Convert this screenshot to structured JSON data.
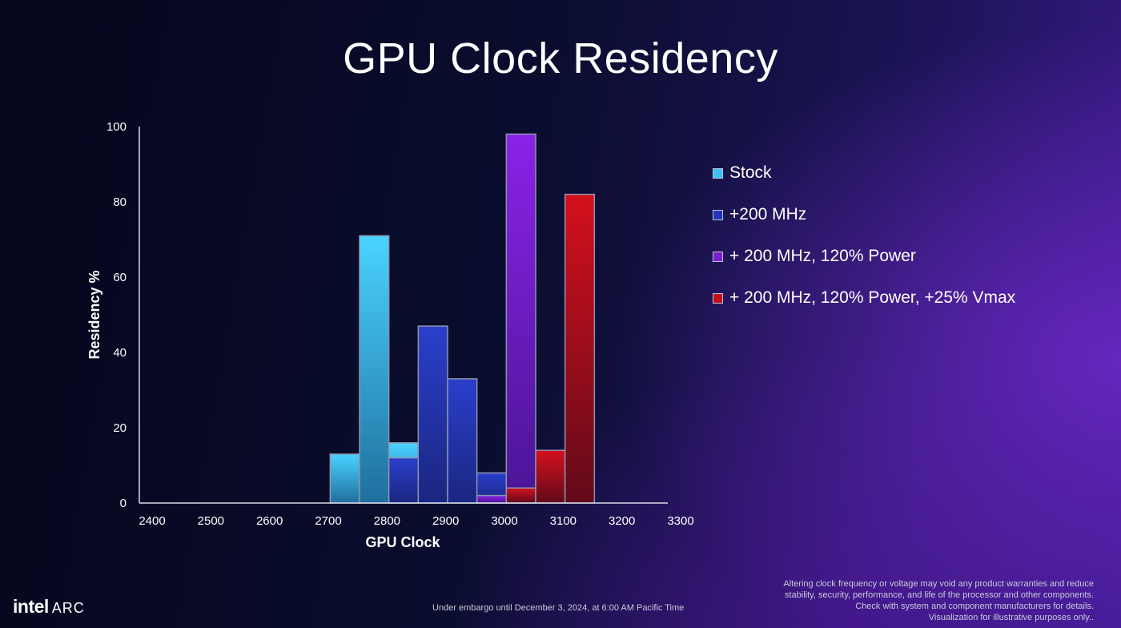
{
  "title": "GPU Clock Residency",
  "colors": {
    "Stock": "#3cc3f2",
    "+200 MHz": "#2235b8",
    "+ 200 MHz, 120% Power": "#7a1fd0",
    "+ 200 MHz, 120% Power, +25% Vmax": "#c20f1a"
  },
  "chart_data": {
    "type": "bar",
    "xlabel": "GPU Clock",
    "ylabel": "Residency  %",
    "xlim": [
      2400,
      3300
    ],
    "ylim": [
      0,
      100
    ],
    "xticks": [
      2400,
      2500,
      2600,
      2700,
      2800,
      2900,
      3000,
      3100,
      3200,
      3300
    ],
    "yticks": [
      0,
      20,
      40,
      60,
      80,
      100
    ],
    "grid": false,
    "legend_position": "right",
    "series": [
      {
        "name": "Stock",
        "x": [
          2750,
          2800,
          2850
        ],
        "values": [
          13,
          71,
          16
        ]
      },
      {
        "name": "+200 MHz",
        "x": [
          2850,
          2900,
          2950,
          3000
        ],
        "values": [
          12,
          47,
          33,
          8
        ]
      },
      {
        "name": "+ 200 MHz, 120% Power",
        "x": [
          3000,
          3050
        ],
        "values": [
          2,
          98
        ]
      },
      {
        "name": "+ 200 MHz, 120% Power, +25% Vmax",
        "x": [
          3050,
          3100,
          3150
        ],
        "values": [
          4,
          14,
          82
        ]
      }
    ]
  },
  "footer": {
    "logo_intel": "intel",
    "logo_arc": "ARC",
    "embargo": "Under embargo until December 3, 2024, at 6:00 AM Pacific Time",
    "disclaimer_lines": [
      "Altering clock frequency or voltage may void any product warranties and reduce",
      "stability, security, performance, and life of the processor and other components.",
      "Check with system and component manufacturers for details.",
      "Visualization for illustrative purposes only.."
    ]
  }
}
